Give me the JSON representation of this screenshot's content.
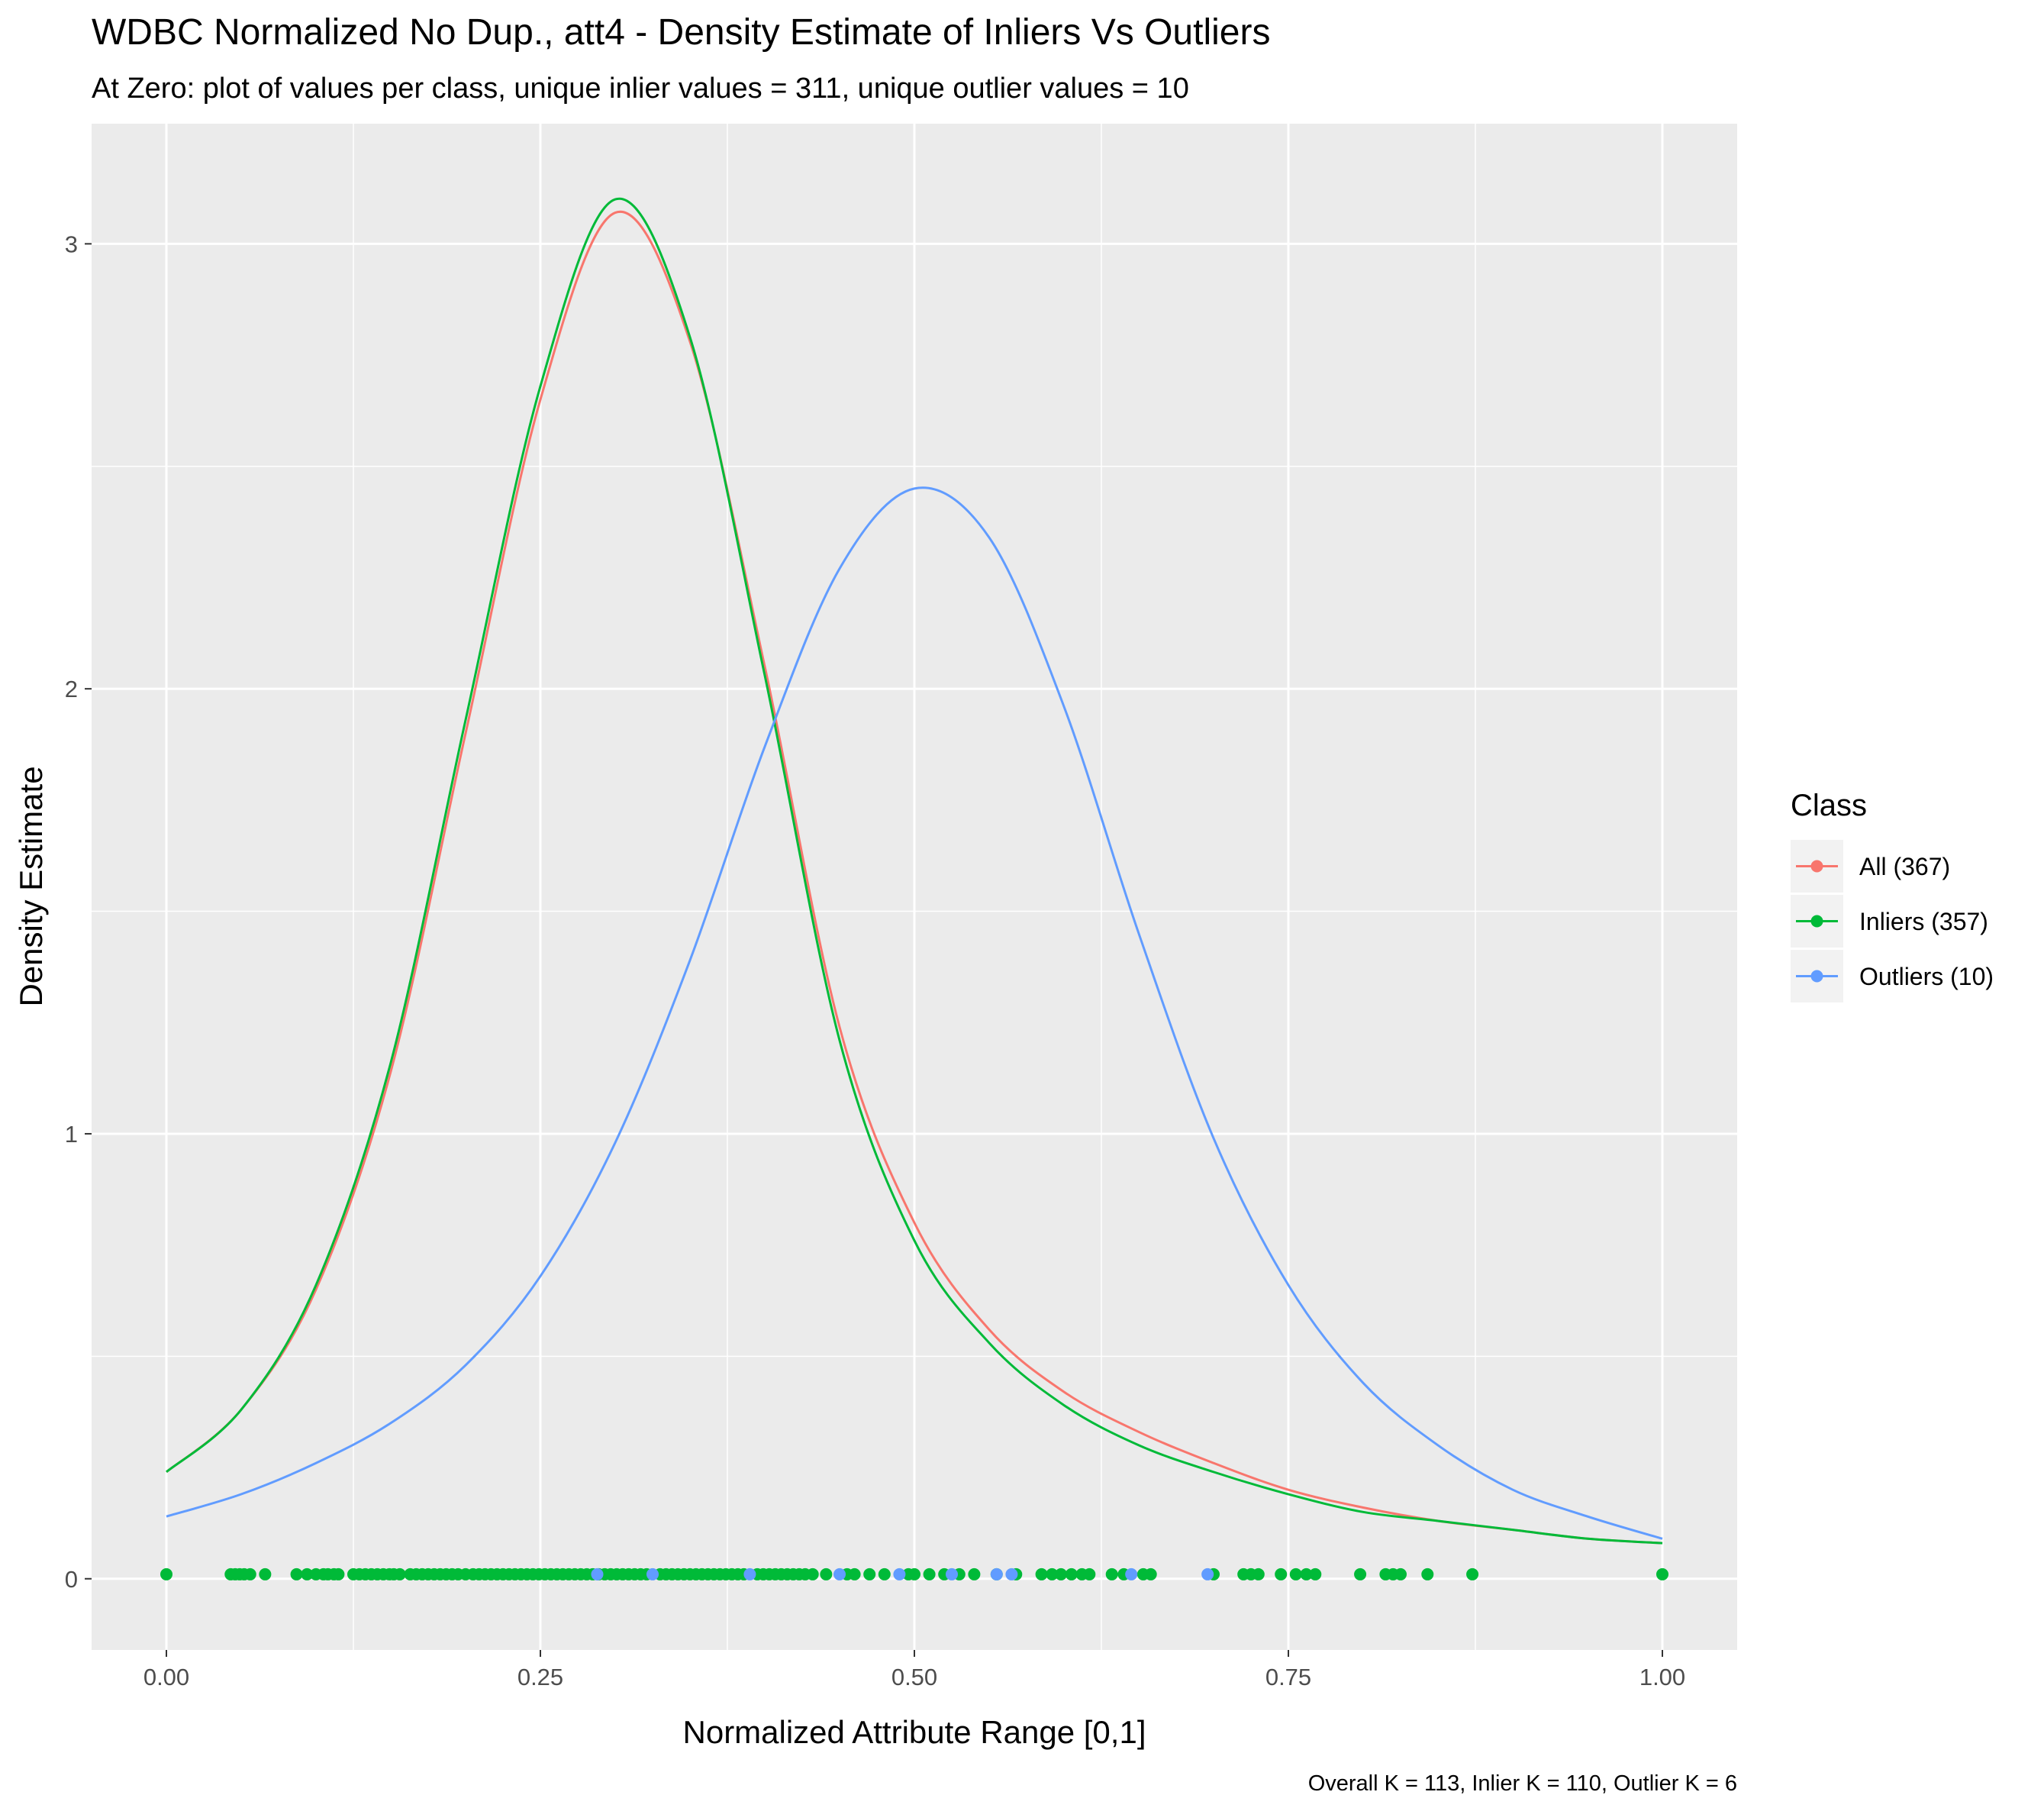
{
  "chart_data": {
    "type": "line",
    "title": "WDBC Normalized No Dup., att4 - Density Estimate of Inliers Vs Outliers",
    "subtitle": "At Zero: plot of values per class, unique inlier values = 311, unique outlier values = 10",
    "xlabel": "Normalized Attribute Range [0,1]",
    "ylabel": "Density Estimate",
    "caption": "Overall K = 113, Inlier K = 110, Outlier K = 6",
    "xlim": [
      -0.05,
      1.05
    ],
    "ylim": [
      -0.16,
      3.27
    ],
    "x_ticks": [
      0.0,
      0.25,
      0.5,
      0.75,
      1.0
    ],
    "x_tick_labels": [
      "0.00",
      "0.25",
      "0.50",
      "0.75",
      "1.00"
    ],
    "y_ticks": [
      0,
      1,
      2,
      3
    ],
    "y_tick_labels": [
      "0",
      "1",
      "2",
      "3"
    ],
    "grid": true,
    "panel_background": "#ebebeb",
    "legend": {
      "title": "Class",
      "position": "right",
      "entries": [
        {
          "label": "All (367)",
          "color": "#f8766d"
        },
        {
          "label": "Inliers (357)",
          "color": "#00ba38"
        },
        {
          "label": "Outliers (10)",
          "color": "#619cff"
        }
      ]
    },
    "series": [
      {
        "name": "All (367)",
        "color": "#f8766d",
        "x": [
          0.0,
          0.05,
          0.1,
          0.15,
          0.2,
          0.25,
          0.3,
          0.35,
          0.4,
          0.45,
          0.5,
          0.55,
          0.6,
          0.65,
          0.7,
          0.75,
          0.8,
          0.85,
          0.9,
          0.95,
          1.0
        ],
        "y": [
          0.24,
          0.38,
          0.65,
          1.14,
          1.9,
          2.65,
          3.07,
          2.78,
          2.05,
          1.24,
          0.8,
          0.56,
          0.42,
          0.33,
          0.26,
          0.2,
          0.16,
          0.13,
          0.11,
          0.09,
          0.08
        ]
      },
      {
        "name": "Inliers (357)",
        "color": "#00ba38",
        "x": [
          0.0,
          0.05,
          0.1,
          0.15,
          0.2,
          0.25,
          0.3,
          0.35,
          0.4,
          0.45,
          0.5,
          0.55,
          0.6,
          0.65,
          0.7,
          0.75,
          0.8,
          0.85,
          0.9,
          0.95,
          1.0
        ],
        "y": [
          0.24,
          0.38,
          0.66,
          1.16,
          1.93,
          2.68,
          3.1,
          2.79,
          2.03,
          1.21,
          0.76,
          0.53,
          0.39,
          0.3,
          0.24,
          0.19,
          0.15,
          0.13,
          0.11,
          0.09,
          0.08
        ]
      },
      {
        "name": "Outliers (10)",
        "color": "#619cff",
        "x": [
          0.0,
          0.05,
          0.1,
          0.15,
          0.2,
          0.25,
          0.3,
          0.35,
          0.4,
          0.45,
          0.5,
          0.55,
          0.6,
          0.65,
          0.7,
          0.75,
          0.8,
          0.85,
          0.9,
          0.95,
          1.0
        ],
        "y": [
          0.14,
          0.19,
          0.26,
          0.35,
          0.48,
          0.68,
          0.98,
          1.39,
          1.87,
          2.27,
          2.45,
          2.34,
          1.96,
          1.45,
          0.99,
          0.66,
          0.44,
          0.3,
          0.2,
          0.14,
          0.09
        ]
      }
    ],
    "rug_y": 0.01,
    "inlier_points": [
      0.0,
      0.043,
      0.046,
      0.049,
      0.052,
      0.056,
      0.066,
      0.087,
      0.094,
      0.1,
      0.105,
      0.108,
      0.112,
      0.115,
      0.125,
      0.129,
      0.133,
      0.137,
      0.141,
      0.145,
      0.149,
      0.152,
      0.156,
      0.163,
      0.167,
      0.171,
      0.175,
      0.179,
      0.183,
      0.187,
      0.191,
      0.195,
      0.2,
      0.205,
      0.209,
      0.213,
      0.217,
      0.221,
      0.225,
      0.229,
      0.233,
      0.237,
      0.241,
      0.245,
      0.249,
      0.253,
      0.257,
      0.261,
      0.265,
      0.269,
      0.273,
      0.277,
      0.281,
      0.285,
      0.289,
      0.293,
      0.297,
      0.301,
      0.305,
      0.309,
      0.313,
      0.317,
      0.321,
      0.33,
      0.334,
      0.338,
      0.342,
      0.346,
      0.35,
      0.354,
      0.358,
      0.362,
      0.366,
      0.37,
      0.374,
      0.378,
      0.382,
      0.386,
      0.395,
      0.399,
      0.403,
      0.407,
      0.411,
      0.415,
      0.419,
      0.423,
      0.427,
      0.432,
      0.441,
      0.455,
      0.46,
      0.47,
      0.48,
      0.496,
      0.5,
      0.51,
      0.52,
      0.53,
      0.54,
      0.555,
      0.568,
      0.585,
      0.592,
      0.598,
      0.605,
      0.612,
      0.617,
      0.632,
      0.64,
      0.653,
      0.658,
      0.7,
      0.72,
      0.725,
      0.73,
      0.745,
      0.755,
      0.762,
      0.768,
      0.798,
      0.815,
      0.82,
      0.825,
      0.843,
      0.873,
      1.0
    ],
    "outlier_points": [
      0.288,
      0.325,
      0.39,
      0.45,
      0.49,
      0.525,
      0.555,
      0.565,
      0.645,
      0.696
    ]
  }
}
